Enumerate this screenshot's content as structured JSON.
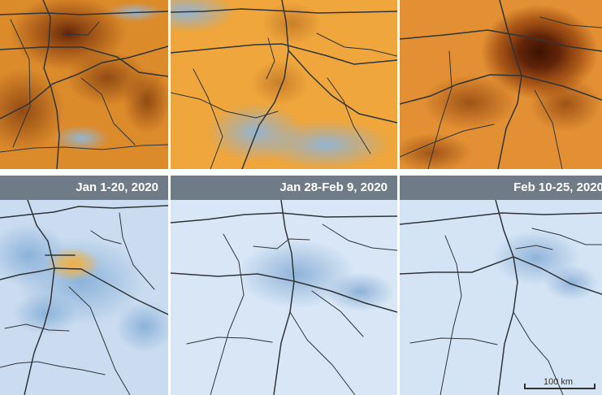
{
  "captions": [
    "Jan 1-20, 2020",
    "Jan 28-Feb 9, 2020",
    "Feb 10-25, 2020"
  ],
  "scale_bar": {
    "label": "100 km"
  },
  "colors": {
    "background": "#ffffff",
    "caption_bar": "#6f7b86",
    "caption_text": "#ffffff",
    "high_no2": "#5a1d06",
    "mid_no2": "#d88d2d",
    "low_no2": "#f2aa3e",
    "clean_air": "#c7d9ed",
    "blue_patch": "#8eb2d6",
    "roads": "#2f3438"
  }
}
